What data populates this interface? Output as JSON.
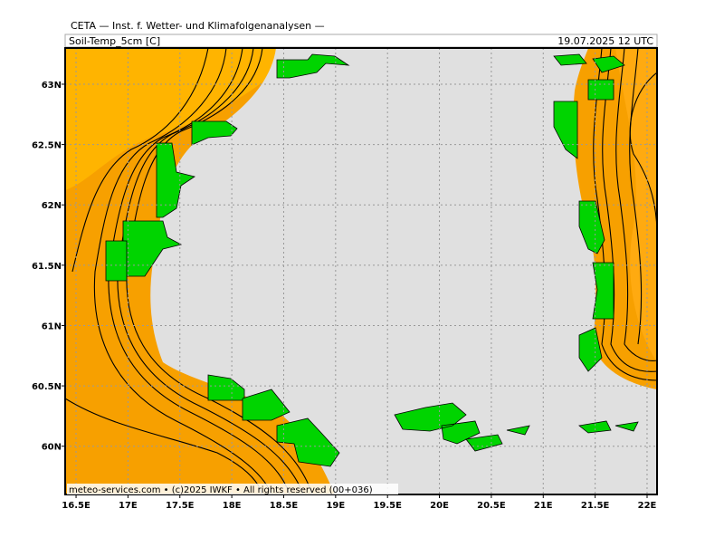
{
  "header": {
    "title": "CETA — Inst. f. Wetter- und Klimafolgenanalysen —",
    "field": "Soil-Temp_5cm [C]",
    "valid_time": "19.07.2025 12 UTC"
  },
  "footer": "meteo-services.com • (c)2025 IWKF • All rights reserved (00+036)",
  "map": {
    "xlim": [
      16.395,
      22.096
    ],
    "ylim": [
      59.6,
      63.3
    ],
    "xticks": [
      {
        "value": 16.5,
        "label": "16.5E"
      },
      {
        "value": 17,
        "label": "17E"
      },
      {
        "value": 17.5,
        "label": "17.5E"
      },
      {
        "value": 18,
        "label": "18E"
      },
      {
        "value": 18.5,
        "label": "18.5E"
      },
      {
        "value": 19,
        "label": "19E"
      },
      {
        "value": 19.5,
        "label": "19.5E"
      },
      {
        "value": 20,
        "label": "20E"
      },
      {
        "value": 20.5,
        "label": "20.5E"
      },
      {
        "value": 21,
        "label": "21E"
      },
      {
        "value": 21.5,
        "label": "21.5E"
      },
      {
        "value": 22,
        "label": "22E"
      }
    ],
    "yticks": [
      {
        "value": 60,
        "label": "60N"
      },
      {
        "value": 60.5,
        "label": "60.5N"
      },
      {
        "value": 61,
        "label": "61N"
      },
      {
        "value": 61.5,
        "label": "61.5N"
      },
      {
        "value": 62,
        "label": "62N"
      },
      {
        "value": 62.5,
        "label": "62.5N"
      },
      {
        "value": 63,
        "label": "63N"
      }
    ]
  }
}
